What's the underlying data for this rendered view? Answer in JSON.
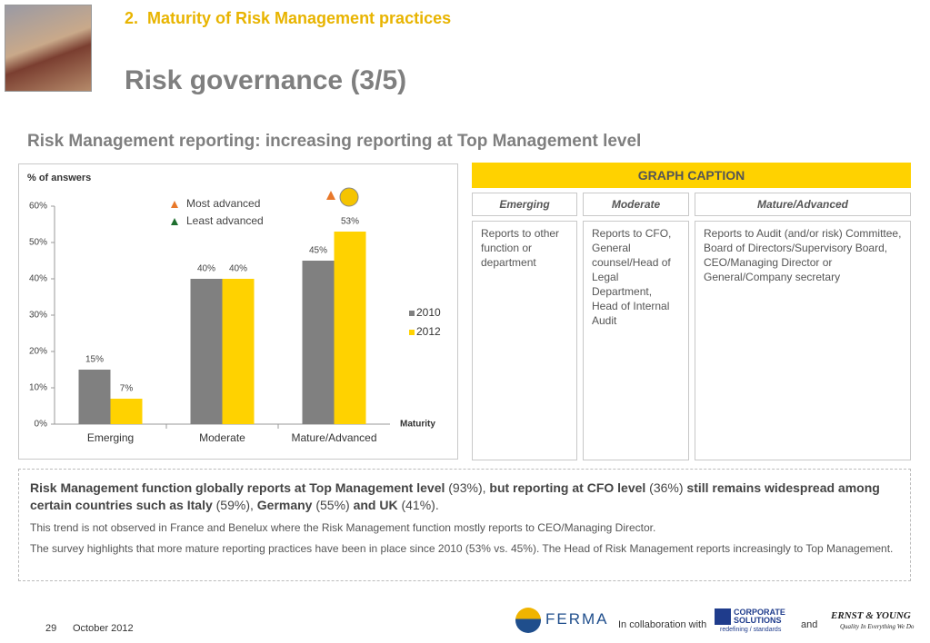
{
  "header": {
    "section": "2.  Maturity of Risk Management practices",
    "title": "Risk governance (3/5)"
  },
  "subtitle": "Risk Management reporting: increasing reporting at Top Management level",
  "chart_data": {
    "type": "bar",
    "y_axis_label": "% of answers",
    "x_axis_label": "Maturity",
    "categories": [
      "Emerging",
      "Moderate",
      "Mature/Advanced"
    ],
    "series": [
      {
        "name": "2010",
        "color": "#808080",
        "values": [
          15,
          40,
          45
        ],
        "value_labels": [
          "15%",
          "40%",
          "45%"
        ]
      },
      {
        "name": "2012",
        "color": "#ffd200",
        "values": [
          7,
          40,
          53
        ],
        "value_labels": [
          "7%",
          "40%",
          "53%"
        ]
      }
    ],
    "ylim": [
      0,
      60
    ],
    "yticks": [
      {
        "value": 0,
        "label": "0%"
      },
      {
        "value": 10,
        "label": "10%"
      },
      {
        "value": 20,
        "label": "20%"
      },
      {
        "value": 30,
        "label": "30%"
      },
      {
        "value": 40,
        "label": "40%"
      },
      {
        "value": 50,
        "label": "50%"
      },
      {
        "value": 60,
        "label": "60%"
      }
    ],
    "annotations": [
      "Most advanced",
      "Least advanced"
    ]
  },
  "caption": {
    "title": "GRAPH CAPTION",
    "columns": [
      {
        "heading": "Emerging",
        "text": "Reports to other function or department"
      },
      {
        "heading": "Moderate",
        "text": "Reports to CFO, General counsel/Head of Legal Department, Head of Internal Audit"
      },
      {
        "heading": "Mature/Advanced",
        "text": "Reports to Audit (and/or risk) Committee, Board of Directors/Supervisory Board, CEO/Managing Director or General/Company secretary"
      }
    ]
  },
  "summary": {
    "paragraphs": [
      [
        {
          "text": "Risk Management function globally reports at Top Management level",
          "bold": true
        },
        {
          "text": " (93%), "
        },
        {
          "text": "but reporting at CFO level",
          "bold": true
        },
        {
          "text": " (36%) "
        },
        {
          "text": "still remains widespread among certain countries such as Italy",
          "bold": true
        },
        {
          "text": " (59%), "
        },
        {
          "text": "Germany",
          "bold": true
        },
        {
          "text": " (55%) "
        },
        {
          "text": "and UK",
          "bold": true
        },
        {
          "text": " (41%)."
        }
      ],
      [
        {
          "text": "This trend is not observed in France and Benelux where the Risk Management function mostly reports to CEO/Managing Director."
        }
      ],
      [
        {
          "text": "The survey highlights that more mature reporting practices have been in place since 2010 (53% vs. 45%). The Head of Risk Management reports increasingly to Top Management."
        }
      ]
    ]
  },
  "footer": {
    "page": "29",
    "date": "October 2012",
    "collaboration": "In collaboration with",
    "and": "and",
    "logos": {
      "ferma": "FERMA",
      "corporate": "CORPORATE SOLUTIONS",
      "tagline": "redefining / standards",
      "ey": "ERNST & YOUNG",
      "ey_tagline": "Quality In Everything We Do"
    }
  }
}
